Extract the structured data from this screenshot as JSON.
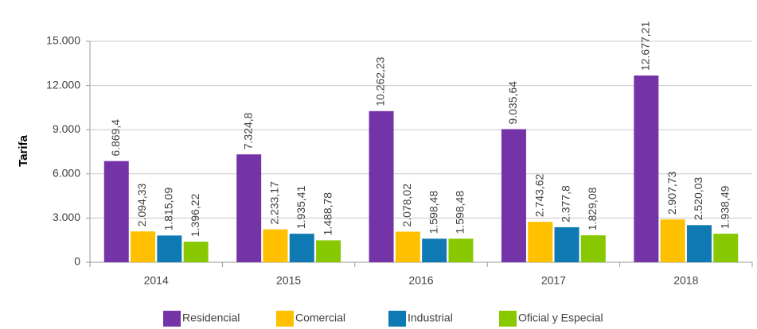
{
  "chart_data": {
    "type": "bar",
    "ylabel": "Tarifa",
    "categories": [
      "2014",
      "2015",
      "2016",
      "2017",
      "2018"
    ],
    "series": [
      {
        "name": "Residencial",
        "color": "#7434a8",
        "values": [
          6869.4,
          7324.8,
          10262.23,
          9035.64,
          12677.21
        ],
        "value_labels": [
          "6.869,4",
          "7.324,8",
          "10.262,23",
          "9.035,64",
          "12.677,21"
        ]
      },
      {
        "name": "Comercial",
        "color": "#ffc000",
        "values": [
          2094.33,
          2233.17,
          2078.02,
          2743.62,
          2907.73
        ],
        "value_labels": [
          "2.094,33",
          "2.233,17",
          "2.078,02",
          "2.743,62",
          "2.907,73"
        ]
      },
      {
        "name": "Industrial",
        "color": "#0f79b3",
        "values": [
          1815.09,
          1935.41,
          1598.48,
          2377.8,
          2520.03
        ],
        "value_labels": [
          "1.815,09",
          "1.935,41",
          "1.598,48",
          "2.377,8",
          "2.520,03"
        ]
      },
      {
        "name": "Oficial y Especial",
        "color": "#88c800",
        "values": [
          1396.22,
          1488.78,
          1598.48,
          1829.08,
          1938.49
        ],
        "value_labels": [
          "1.396,22",
          "1.488,78",
          "1.598,48",
          "1.829,08",
          "1.938,49"
        ]
      }
    ],
    "ylim": [
      0,
      15000
    ],
    "yticks": [
      0,
      {
        "value": 3000,
        "label": "3.000"
      },
      {
        "value": 6000,
        "label": "6.000"
      },
      {
        "value": 9000,
        "label": "9.000"
      },
      {
        "value": 12000,
        "label": "12.000"
      },
      {
        "value": 15000,
        "label": "15.000"
      }
    ],
    "grid": true,
    "legend": "bottom"
  }
}
